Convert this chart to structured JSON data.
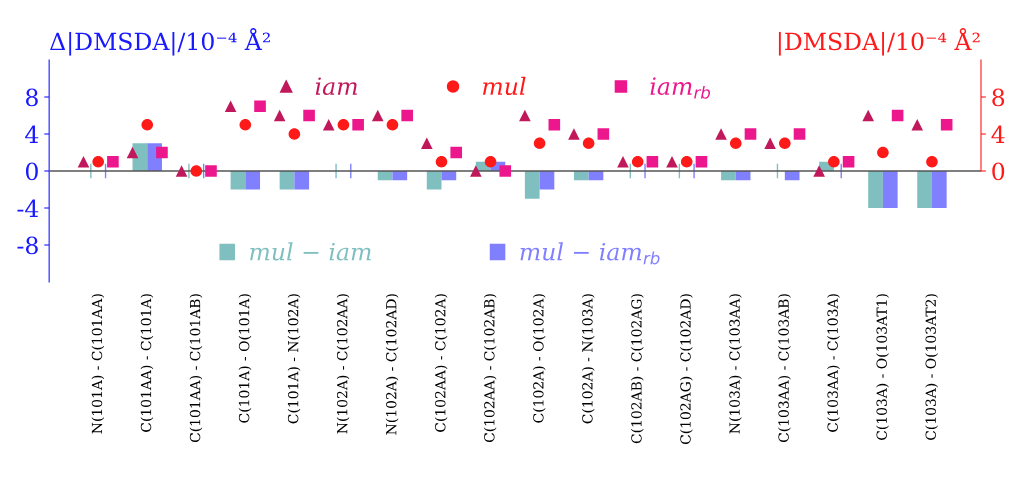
{
  "chart_data": {
    "type": "bar",
    "ylabel": "Δ|DMSDA|/10⁻⁴ Å²",
    "y2label": "|DMSDA|/10⁻⁴ Å²",
    "categories": [
      "N(101A) - C(101AA)",
      "C(101AA) - C(101A)",
      "C(101AA) - C(101AB)",
      "C(101A) - O(101A)",
      "C(101A) - N(102A)",
      "N(102A) - C(102AA)",
      "N(102A) - C(102AD)",
      "C(102AA) - C(102A)",
      "C(102AA) - C(102AB)",
      "C(102A) - O(102A)",
      "C(102A) - N(103A)",
      "C(102AB) - C(102AG)",
      "C(102AG) - C(102AD)",
      "N(103A) - C(103AA)",
      "C(103AA) - C(103AB)",
      "C(103AA) - C(103A)",
      "C(103A) - O(103AT1)",
      "C(103A) - O(103AT2)"
    ],
    "series": [
      {
        "name": "iam",
        "type": "scatter",
        "axis": "y2",
        "marker": "triangle",
        "color": "#c0185a",
        "values": [
          1,
          2,
          0,
          7,
          6,
          5,
          6,
          3,
          0,
          6,
          4,
          1,
          1,
          4,
          3,
          0,
          6,
          5
        ]
      },
      {
        "name": "mul",
        "type": "scatter",
        "axis": "y2",
        "marker": "circle",
        "color": "#ff1a1a",
        "values": [
          1,
          5,
          0,
          5,
          4,
          5,
          5,
          1,
          1,
          3,
          3,
          1,
          1,
          3,
          3,
          1,
          2,
          1
        ]
      },
      {
        "name": "iam$_{rb}$",
        "type": "scatter",
        "axis": "y2",
        "marker": "square",
        "color": "#ec178c",
        "values": [
          1,
          2,
          0,
          7,
          6,
          5,
          6,
          2,
          0,
          5,
          4,
          1,
          1,
          4,
          4,
          1,
          6,
          5
        ]
      },
      {
        "name": "mul − iam",
        "axis": "y",
        "color": "#80bfbf",
        "values": [
          0,
          3,
          0,
          -2,
          -2,
          0,
          -1,
          -2,
          1,
          -3,
          -1,
          0,
          0,
          -1,
          0,
          1,
          -4,
          -4
        ]
      },
      {
        "name": "mul − iam$_{rb}$",
        "axis": "y",
        "color": "#8080ff",
        "values": [
          0,
          3,
          0,
          -2,
          -2,
          0,
          -1,
          -1,
          1,
          -2,
          -1,
          0,
          0,
          -1,
          -1,
          0,
          -4,
          -4
        ]
      }
    ],
    "ylim": [
      -12,
      12
    ],
    "yticks": [
      {
        "value": -8,
        "label": "-8"
      },
      {
        "value": -4,
        "label": "-4"
      },
      0,
      4,
      8
    ],
    "y2lim": [
      -12,
      12
    ],
    "y2ticks": [
      0,
      4,
      8
    ],
    "ref_lines": [
      {
        "axis": "y",
        "value": 0,
        "color": "#555555"
      }
    ],
    "legend": "top",
    "grid": false
  }
}
